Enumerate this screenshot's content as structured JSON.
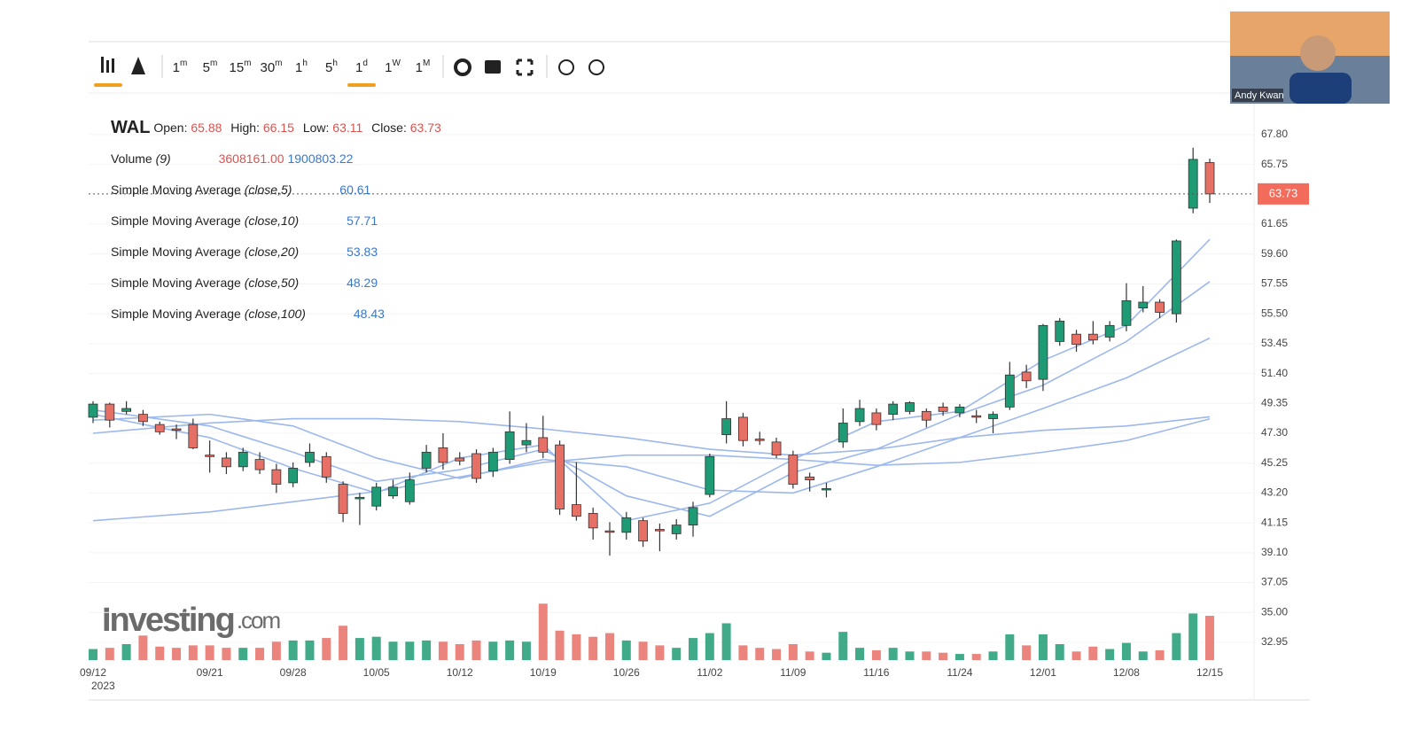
{
  "toolbar": {
    "intervals": [
      {
        "num": "1",
        "unit": "m"
      },
      {
        "num": "5",
        "unit": "m"
      },
      {
        "num": "15",
        "unit": "m"
      },
      {
        "num": "30",
        "unit": "m"
      },
      {
        "num": "1",
        "unit": "h"
      },
      {
        "num": "5",
        "unit": "h"
      },
      {
        "num": "1",
        "unit": "d"
      },
      {
        "num": "1",
        "unit": "W"
      },
      {
        "num": "1",
        "unit": "M"
      }
    ]
  },
  "video": {
    "name": "Andy Kwan"
  },
  "watermark": {
    "brand": "Investing",
    "suffix": "com"
  },
  "chart_data": {
    "type": "candlestick",
    "symbol": "WAL",
    "legend": {
      "open_label": "Open:",
      "high_label": "High:",
      "low_label": "Low:",
      "close_label": "Close:",
      "volume_label": "Volume",
      "volume_param": "(9)",
      "volume_value": "3608161.00",
      "volume_ma": 1900803.22
    },
    "categories": [
      "09/12",
      null,
      null,
      null,
      null,
      null,
      null,
      "09/21",
      null,
      null,
      null,
      null,
      "09/28",
      null,
      null,
      null,
      null,
      "10/05",
      null,
      null,
      null,
      null,
      "10/12",
      null,
      null,
      null,
      null,
      "10/19",
      null,
      null,
      null,
      null,
      "10/26",
      null,
      null,
      null,
      null,
      "11/02",
      null,
      null,
      null,
      null,
      "11/09",
      null,
      null,
      null,
      null,
      "11/16",
      null,
      null,
      null,
      null,
      "11/24",
      null,
      null,
      null,
      null,
      "12/01",
      null,
      null,
      null,
      null,
      "12/08",
      null,
      null,
      null,
      null,
      "12/15"
    ],
    "year_label": "2023",
    "open": [
      48.4,
      49.3,
      48.8,
      48.6,
      47.9,
      47.6,
      47.9,
      45.8,
      45.6,
      45.0,
      45.5,
      44.8,
      43.9,
      45.3,
      45.7,
      43.8,
      42.8,
      42.3,
      43.0,
      42.6,
      44.9,
      46.3,
      45.6,
      45.9,
      44.7,
      45.5,
      46.5,
      47.0,
      46.5,
      42.4,
      41.8,
      40.6,
      40.5,
      41.3,
      40.7,
      40.4,
      41.0,
      43.1,
      47.2,
      48.4,
      46.9,
      46.7,
      45.8,
      44.3,
      43.5,
      46.7,
      48.1,
      48.7,
      48.6,
      48.8,
      48.8,
      49.1,
      48.7,
      48.5,
      48.3,
      49.1,
      51.5,
      51.0,
      53.6,
      54.1,
      54.1,
      53.9,
      54.7,
      55.9,
      56.3,
      55.5,
      62.75,
      65.88
    ],
    "high": [
      49.5,
      49.4,
      49.5,
      48.9,
      48.1,
      47.9,
      48.3,
      46.8,
      46.0,
      46.3,
      46.0,
      45.2,
      45.3,
      46.6,
      46.0,
      44.0,
      43.2,
      43.9,
      44.1,
      44.6,
      46.5,
      47.3,
      46.0,
      46.2,
      46.3,
      48.8,
      48.0,
      48.5,
      46.8,
      45.3,
      42.2,
      41.2,
      41.9,
      41.5,
      41.1,
      41.4,
      42.6,
      45.9,
      49.5,
      48.7,
      47.4,
      47.0,
      46.1,
      44.6,
      43.9,
      49.0,
      49.6,
      49.0,
      49.5,
      49.5,
      49.0,
      49.4,
      49.3,
      48.9,
      48.8,
      52.2,
      52.0,
      54.8,
      55.2,
      54.4,
      55.0,
      55.0,
      57.6,
      57.4,
      56.5,
      60.6,
      66.9,
      66.15
    ],
    "low": [
      48.0,
      47.7,
      48.6,
      47.8,
      47.2,
      46.9,
      46.2,
      44.6,
      44.5,
      44.7,
      44.5,
      43.2,
      43.6,
      45.0,
      43.9,
      41.2,
      41.0,
      42.0,
      42.8,
      42.4,
      44.6,
      44.8,
      45.1,
      43.9,
      44.3,
      45.2,
      46.0,
      45.6,
      41.7,
      41.3,
      40.0,
      38.9,
      40.0,
      39.5,
      39.2,
      40.0,
      40.2,
      42.9,
      46.6,
      46.4,
      46.5,
      45.6,
      43.5,
      43.3,
      42.9,
      46.3,
      47.8,
      47.5,
      48.2,
      48.6,
      47.7,
      48.5,
      48.4,
      48.0,
      47.3,
      48.9,
      50.4,
      50.2,
      53.3,
      52.9,
      53.4,
      53.6,
      54.3,
      55.6,
      55.2,
      54.9,
      62.4,
      63.11
    ],
    "close": [
      49.3,
      48.2,
      49.0,
      48.1,
      47.4,
      47.5,
      46.3,
      45.7,
      45.0,
      46.0,
      44.8,
      43.8,
      44.9,
      46.0,
      44.3,
      41.8,
      42.9,
      43.6,
      43.6,
      44.1,
      46.0,
      45.3,
      45.4,
      44.2,
      46.0,
      47.4,
      46.8,
      46.0,
      42.1,
      41.6,
      40.8,
      40.5,
      41.5,
      39.9,
      40.6,
      41.0,
      42.2,
      45.7,
      48.3,
      46.8,
      46.8,
      45.8,
      43.8,
      44.1,
      43.5,
      48.0,
      49.0,
      47.9,
      49.3,
      49.4,
      48.2,
      48.8,
      49.1,
      48.4,
      48.6,
      51.3,
      50.9,
      54.7,
      55.0,
      53.4,
      53.7,
      54.7,
      56.4,
      56.3,
      55.6,
      60.5,
      66.1,
      63.73
    ],
    "volume": [
      900000,
      1000000,
      1300000,
      2000000,
      1100000,
      1000000,
      1200000,
      1200000,
      1000000,
      1000000,
      1000000,
      1500000,
      1600000,
      1600000,
      1800000,
      2800000,
      1800000,
      1900000,
      1500000,
      1500000,
      1600000,
      1500000,
      1300000,
      1600000,
      1500000,
      1600000,
      1500000,
      4600000,
      2400000,
      2100000,
      1900000,
      2200000,
      1600000,
      1500000,
      1200000,
      1000000,
      1800000,
      2200000,
      3000000,
      1200000,
      1000000,
      900000,
      1300000,
      700000,
      600000,
      2300000,
      1000000,
      800000,
      1000000,
      700000,
      700000,
      600000,
      500000,
      500000,
      700000,
      2100000,
      1200000,
      2100000,
      1300000,
      700000,
      1100000,
      900000,
      1400000,
      700000,
      800000,
      2200000,
      3800000,
      3608161
    ],
    "volume_ylim": [
      0,
      5200000
    ],
    "up_color": "#1e9b74",
    "down_color": "#e66f66",
    "sma_color": "#9db8ec",
    "sma": [
      {
        "name": "Simple Moving Average",
        "param": "(close,5)",
        "x": [
          "09/12",
          "09/21",
          "09/28",
          "10/05",
          "10/12",
          "10/19",
          "10/26",
          "11/02",
          "11/09",
          "11/16",
          "11/24",
          "12/01",
          "12/08",
          "12/15"
        ],
        "values": [
          48.6,
          47.0,
          44.9,
          43.2,
          45.6,
          46.5,
          41.3,
          42.5,
          45.5,
          48.1,
          48.8,
          52.3,
          54.7,
          60.61
        ]
      },
      {
        "name": "Simple Moving Average",
        "param": "(close,10)",
        "x": [
          "09/12",
          "09/21",
          "09/28",
          "10/05",
          "10/12",
          "10/19",
          "10/26",
          "11/02",
          "11/09",
          "11/16",
          "11/24",
          "12/01",
          "12/08",
          "12/15"
        ],
        "values": [
          48.9,
          47.8,
          46.0,
          44.0,
          44.8,
          46.2,
          43.0,
          41.6,
          44.6,
          46.2,
          48.6,
          50.6,
          53.6,
          57.71
        ]
      },
      {
        "name": "Simple Moving Average",
        "param": "(close,20)",
        "x": [
          "09/12",
          "09/21",
          "09/28",
          "10/05",
          "10/12",
          "10/19",
          "10/26",
          "11/02",
          "11/09",
          "11/16",
          "11/24",
          "12/01",
          "12/08",
          "12/15"
        ],
        "values": [
          48.2,
          48.6,
          47.8,
          45.6,
          44.2,
          45.5,
          45.0,
          43.4,
          43.2,
          45.0,
          47.0,
          49.0,
          51.1,
          53.83
        ]
      },
      {
        "name": "Simple Moving Average",
        "param": "(close,50)",
        "x": [
          "09/12",
          "09/21",
          "09/28",
          "10/05",
          "10/12",
          "10/19",
          "10/26",
          "11/02",
          "11/09",
          "11/16",
          "11/24",
          "12/01",
          "12/08",
          "12/15"
        ],
        "values": [
          41.3,
          41.9,
          42.6,
          43.3,
          44.3,
          45.3,
          45.8,
          45.8,
          45.5,
          45.1,
          45.3,
          46.0,
          46.8,
          48.29
        ]
      },
      {
        "name": "Simple Moving Average",
        "param": "(close,100)",
        "x": [
          "09/12",
          "09/21",
          "09/28",
          "10/05",
          "10/12",
          "10/19",
          "10/26",
          "11/02",
          "11/09",
          "11/16",
          "11/24",
          "12/01",
          "12/08",
          "12/15"
        ],
        "values": [
          47.3,
          48.0,
          48.3,
          48.3,
          48.1,
          47.6,
          47.0,
          46.2,
          45.8,
          46.2,
          47.0,
          47.5,
          47.8,
          48.43
        ]
      }
    ],
    "ylim": [
      31.73,
      70.35
    ],
    "yticks": [
      {
        "value": 67.8,
        "label": "67.80"
      },
      {
        "value": 65.75,
        "label": "65.75"
      },
      {
        "value": 61.65,
        "label": "61.65"
      },
      {
        "value": 59.6,
        "label": "59.60"
      },
      {
        "value": 57.55,
        "label": "57.55"
      },
      {
        "value": 55.5,
        "label": "55.50"
      },
      {
        "value": 53.45,
        "label": "53.45"
      },
      {
        "value": 51.4,
        "label": "51.40"
      },
      {
        "value": 49.35,
        "label": "49.35"
      },
      {
        "value": 47.3,
        "label": "47.30"
      },
      {
        "value": 45.25,
        "label": "45.25"
      },
      {
        "value": 43.2,
        "label": "43.20"
      },
      {
        "value": 41.15,
        "label": "41.15"
      },
      {
        "value": 39.1,
        "label": "39.10"
      },
      {
        "value": 37.05,
        "label": "37.05"
      },
      {
        "value": 35.0,
        "label": "35.00"
      },
      {
        "value": 32.95,
        "label": "32.95"
      }
    ]
  }
}
